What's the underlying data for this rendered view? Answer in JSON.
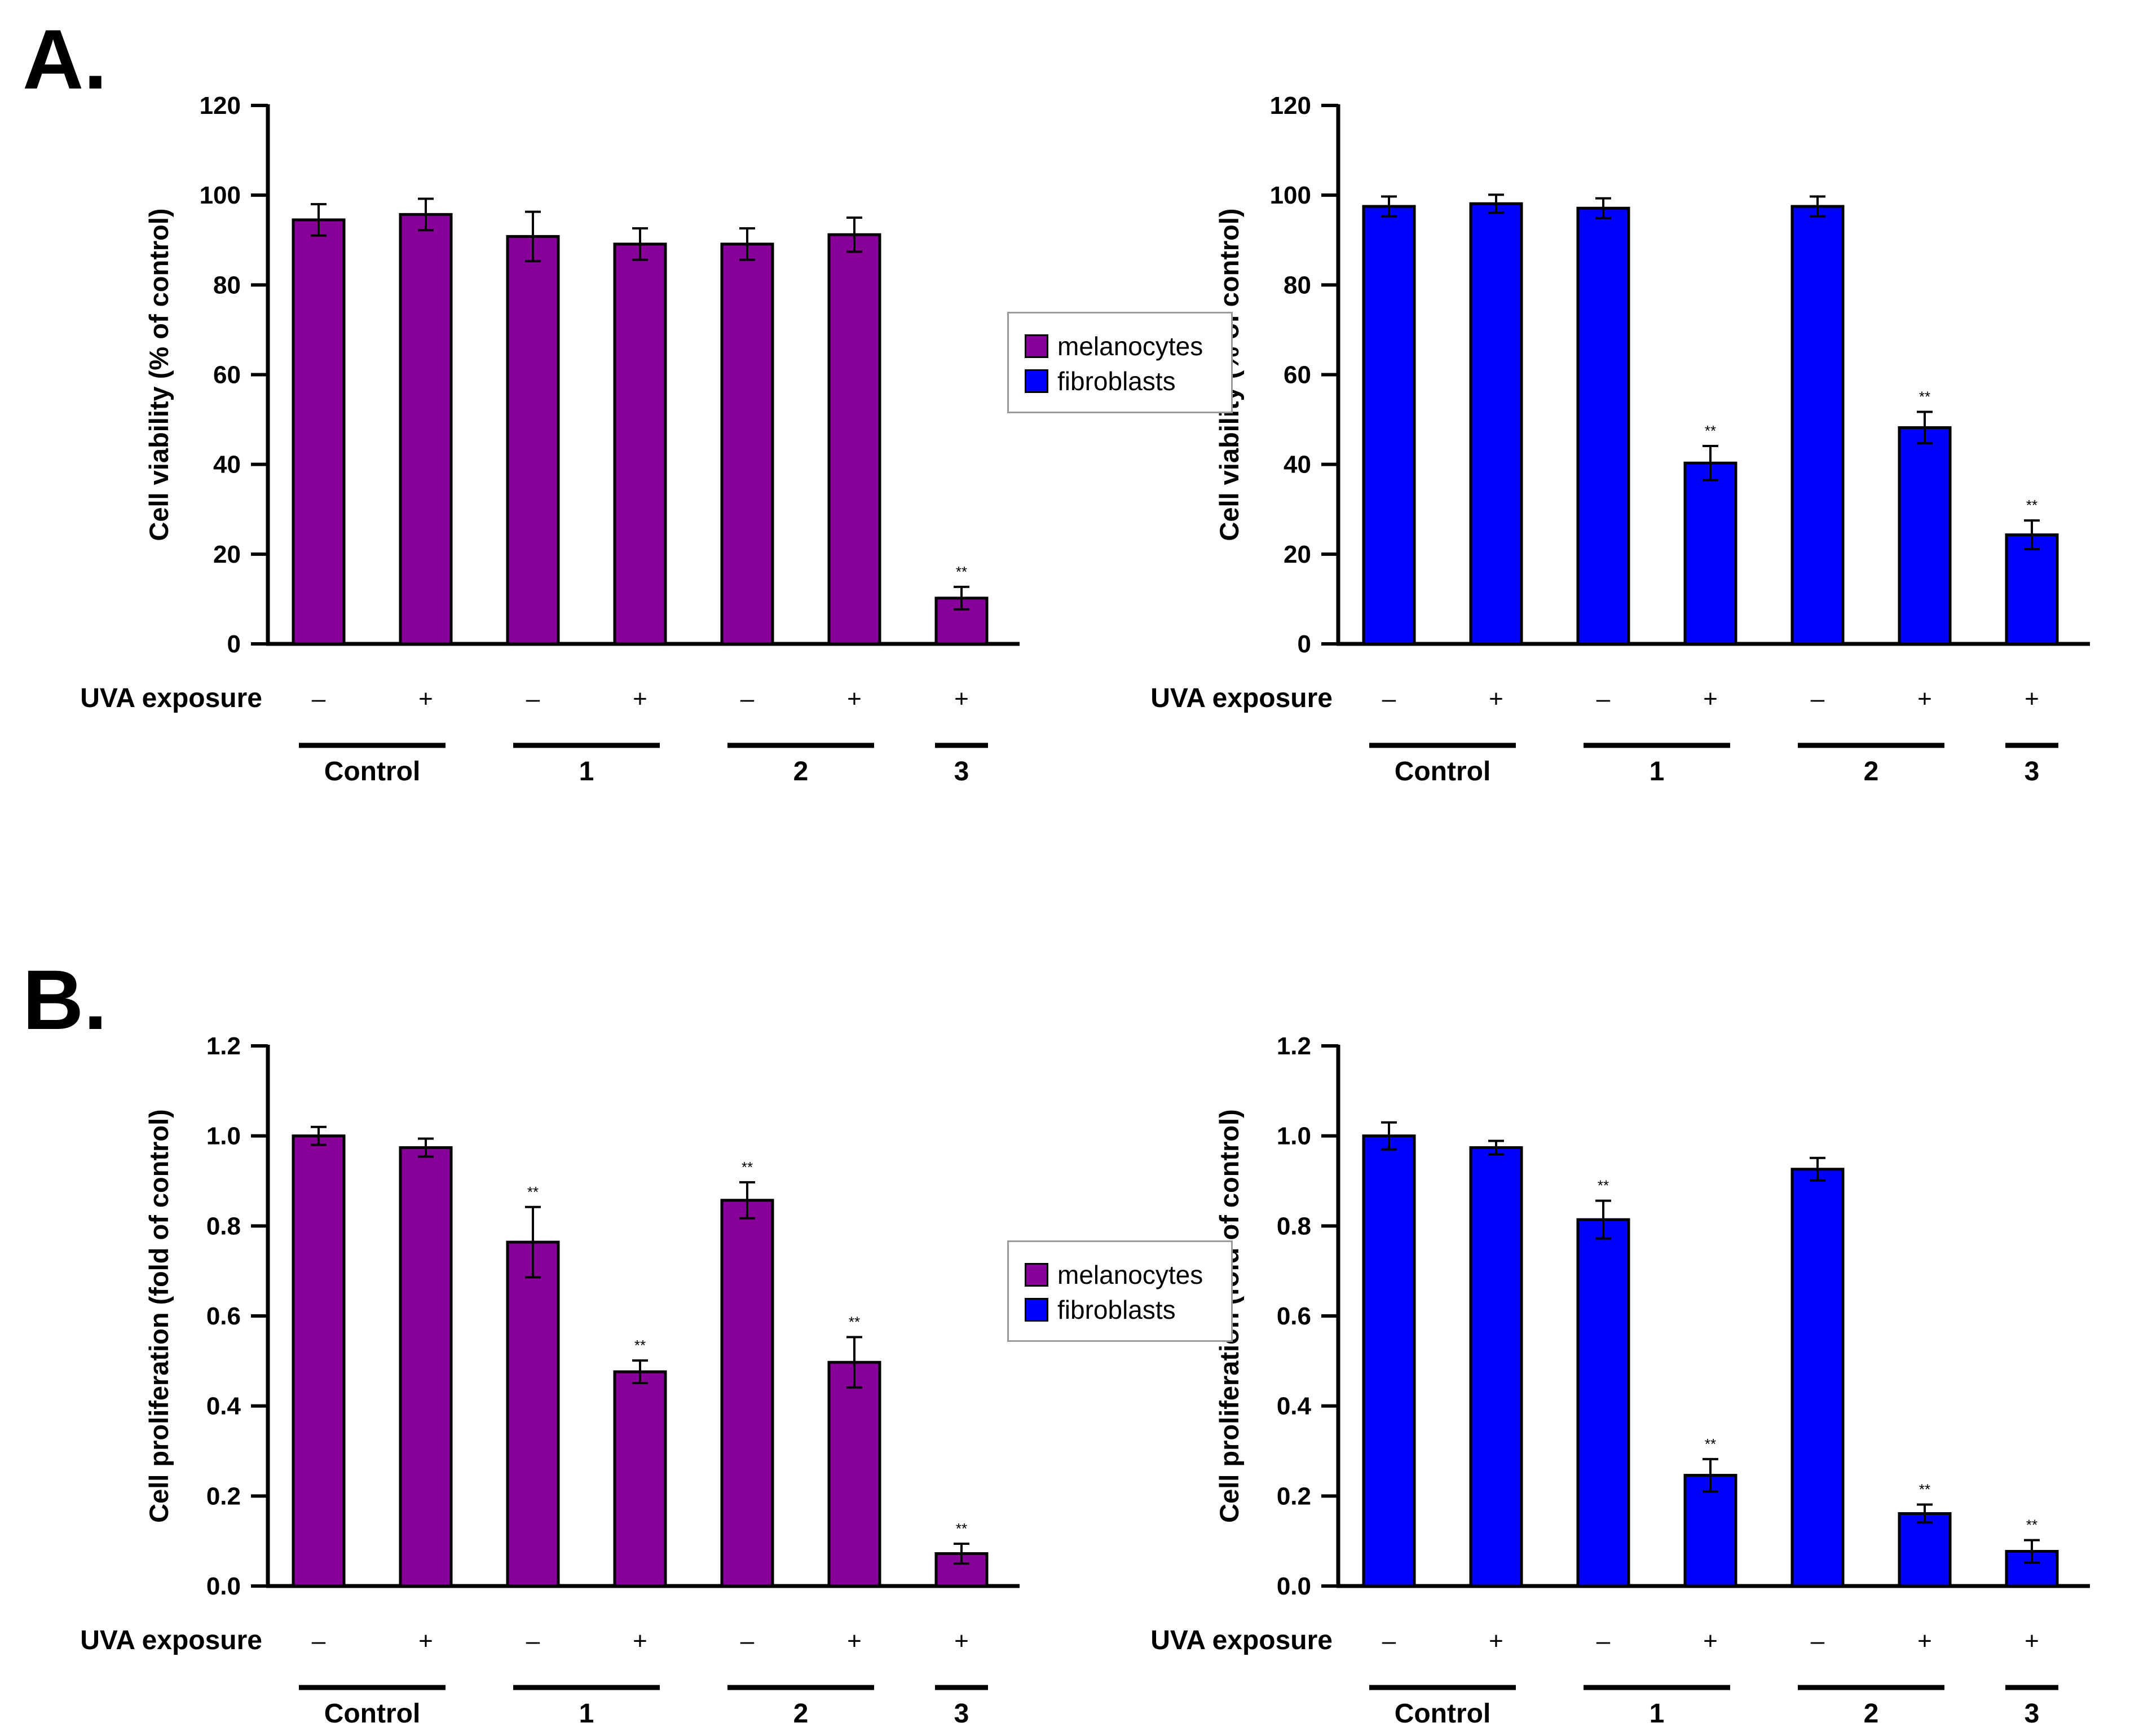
{
  "panels": [
    {
      "letter": "A."
    },
    {
      "letter": "B."
    }
  ],
  "legends": [
    {
      "items": [
        {
          "label": "melanocytes",
          "color": "#880099"
        },
        {
          "label": "fibroblasts",
          "color": "#0000ff"
        }
      ]
    },
    {
      "items": [
        {
          "label": "melanocytes",
          "color": "#880099"
        },
        {
          "label": "fibroblasts",
          "color": "#0000ff"
        }
      ]
    }
  ],
  "chart_data": [
    {
      "type": "bar",
      "panel": "A",
      "cell_type": "melanocytes",
      "color": "#880099",
      "ylabel": "Cell viability (% of control)",
      "ylim": [
        0,
        120
      ],
      "yticks": [
        "0",
        "20",
        "40",
        "60",
        "80",
        "100",
        "120"
      ],
      "row_label": "UVA exposure",
      "uva": [
        "–",
        "+",
        "–",
        "+",
        "–",
        "+",
        "+"
      ],
      "values": [
        94.5,
        95.7,
        90.8,
        89.1,
        89.1,
        91.2,
        10.2
      ],
      "errors": [
        3.5,
        3.5,
        5.5,
        3.5,
        3.5,
        3.8,
        2.5
      ],
      "significance": [
        "",
        "",
        "",
        "",
        "",
        "",
        "**"
      ],
      "groups": [
        {
          "label": "Control",
          "bars": [
            0,
            1
          ]
        },
        {
          "label": "1",
          "bars": [
            2,
            3
          ]
        },
        {
          "label": "2",
          "bars": [
            4,
            5
          ]
        },
        {
          "label": "3",
          "bars": [
            6,
            6
          ]
        }
      ]
    },
    {
      "type": "bar",
      "panel": "A",
      "cell_type": "fibroblasts",
      "color": "#0000ff",
      "ylabel": "Cell viability (% of control)",
      "ylim": [
        0,
        120
      ],
      "yticks": [
        "0",
        "20",
        "40",
        "60",
        "80",
        "100",
        "120"
      ],
      "row_label": "UVA exposure",
      "uva": [
        "–",
        "+",
        "–",
        "+",
        "–",
        "+",
        "+"
      ],
      "values": [
        97.5,
        98.1,
        97.1,
        40.3,
        97.5,
        48.2,
        24.3
      ],
      "errors": [
        2.2,
        2.0,
        2.2,
        3.8,
        2.2,
        3.5,
        3.2
      ],
      "significance": [
        "",
        "",
        "",
        "**",
        "",
        "**",
        "**"
      ],
      "groups": [
        {
          "label": "Control",
          "bars": [
            0,
            1
          ]
        },
        {
          "label": "1",
          "bars": [
            2,
            3
          ]
        },
        {
          "label": "2",
          "bars": [
            4,
            5
          ]
        },
        {
          "label": "3",
          "bars": [
            6,
            6
          ]
        }
      ]
    },
    {
      "type": "bar",
      "panel": "B",
      "cell_type": "melanocytes",
      "color": "#880099",
      "ylabel": "Cell proliferation (fold of control)",
      "ylim": [
        0,
        1.2
      ],
      "yticks": [
        "0.0",
        "0.2",
        "0.4",
        "0.6",
        "0.8",
        "1.0",
        "1.2"
      ],
      "row_label": "UVA exposure",
      "uva": [
        "–",
        "+",
        "–",
        "+",
        "–",
        "+",
        "+"
      ],
      "values": [
        1.0,
        0.974,
        0.764,
        0.476,
        0.857,
        0.497,
        0.072
      ],
      "errors": [
        0.02,
        0.02,
        0.078,
        0.025,
        0.04,
        0.056,
        0.022
      ],
      "significance": [
        "",
        "",
        "**",
        "**",
        "**",
        "**",
        "**"
      ],
      "groups": [
        {
          "label": "Control",
          "bars": [
            0,
            1
          ]
        },
        {
          "label": "1",
          "bars": [
            2,
            3
          ]
        },
        {
          "label": "2",
          "bars": [
            4,
            5
          ]
        },
        {
          "label": "3",
          "bars": [
            6,
            6
          ]
        }
      ]
    },
    {
      "type": "bar",
      "panel": "B",
      "cell_type": "fibroblasts",
      "color": "#0000ff",
      "ylabel": "Cell proliferation (fold of control)",
      "ylim": [
        0,
        1.2
      ],
      "yticks": [
        "0.0",
        "0.2",
        "0.4",
        "0.6",
        "0.8",
        "1.0",
        "1.2"
      ],
      "row_label": "UVA exposure",
      "uva": [
        "–",
        "+",
        "–",
        "+",
        "–",
        "+",
        "+"
      ],
      "values": [
        1.0,
        0.974,
        0.814,
        0.246,
        0.926,
        0.161,
        0.077
      ],
      "errors": [
        0.03,
        0.015,
        0.042,
        0.036,
        0.025,
        0.02,
        0.025
      ],
      "significance": [
        "",
        "",
        "**",
        "**",
        "",
        "**",
        "**"
      ],
      "groups": [
        {
          "label": "Control",
          "bars": [
            0,
            1
          ]
        },
        {
          "label": "1",
          "bars": [
            2,
            3
          ]
        },
        {
          "label": "2",
          "bars": [
            4,
            5
          ]
        },
        {
          "label": "3",
          "bars": [
            6,
            6
          ]
        }
      ]
    }
  ]
}
